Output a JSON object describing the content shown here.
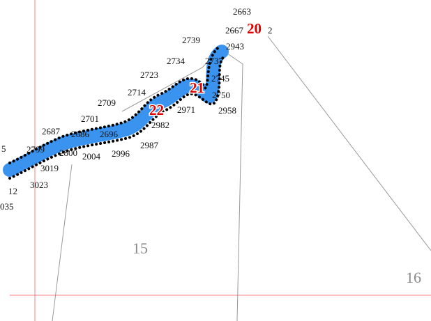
{
  "map": {
    "river": {
      "name": "river-band",
      "fill": "#3b93f0",
      "dot_color": "#000000"
    },
    "grid_line_color": "#f08080",
    "parcel_line_color": "#999999",
    "zone_labels": [
      {
        "id": "zone-20",
        "text": "20"
      },
      {
        "id": "zone-21",
        "text": "21"
      },
      {
        "id": "zone-22",
        "text": "22"
      }
    ],
    "parcel_labels": [
      {
        "id": "parcel-15",
        "text": "15"
      },
      {
        "id": "parcel-16",
        "text": "16"
      }
    ],
    "point_labels": [
      "2663",
      "2667",
      "2",
      "2739",
      "2943",
      "2734",
      "2737",
      "2723",
      "2745",
      "2714",
      "2750",
      "2709",
      "2971",
      "2958",
      "2701",
      "2982",
      "2687",
      "2686",
      "2696",
      "2987",
      "5",
      "2799",
      "2800",
      "2004",
      "2996",
      "3019",
      "3023",
      "12",
      "035"
    ]
  }
}
